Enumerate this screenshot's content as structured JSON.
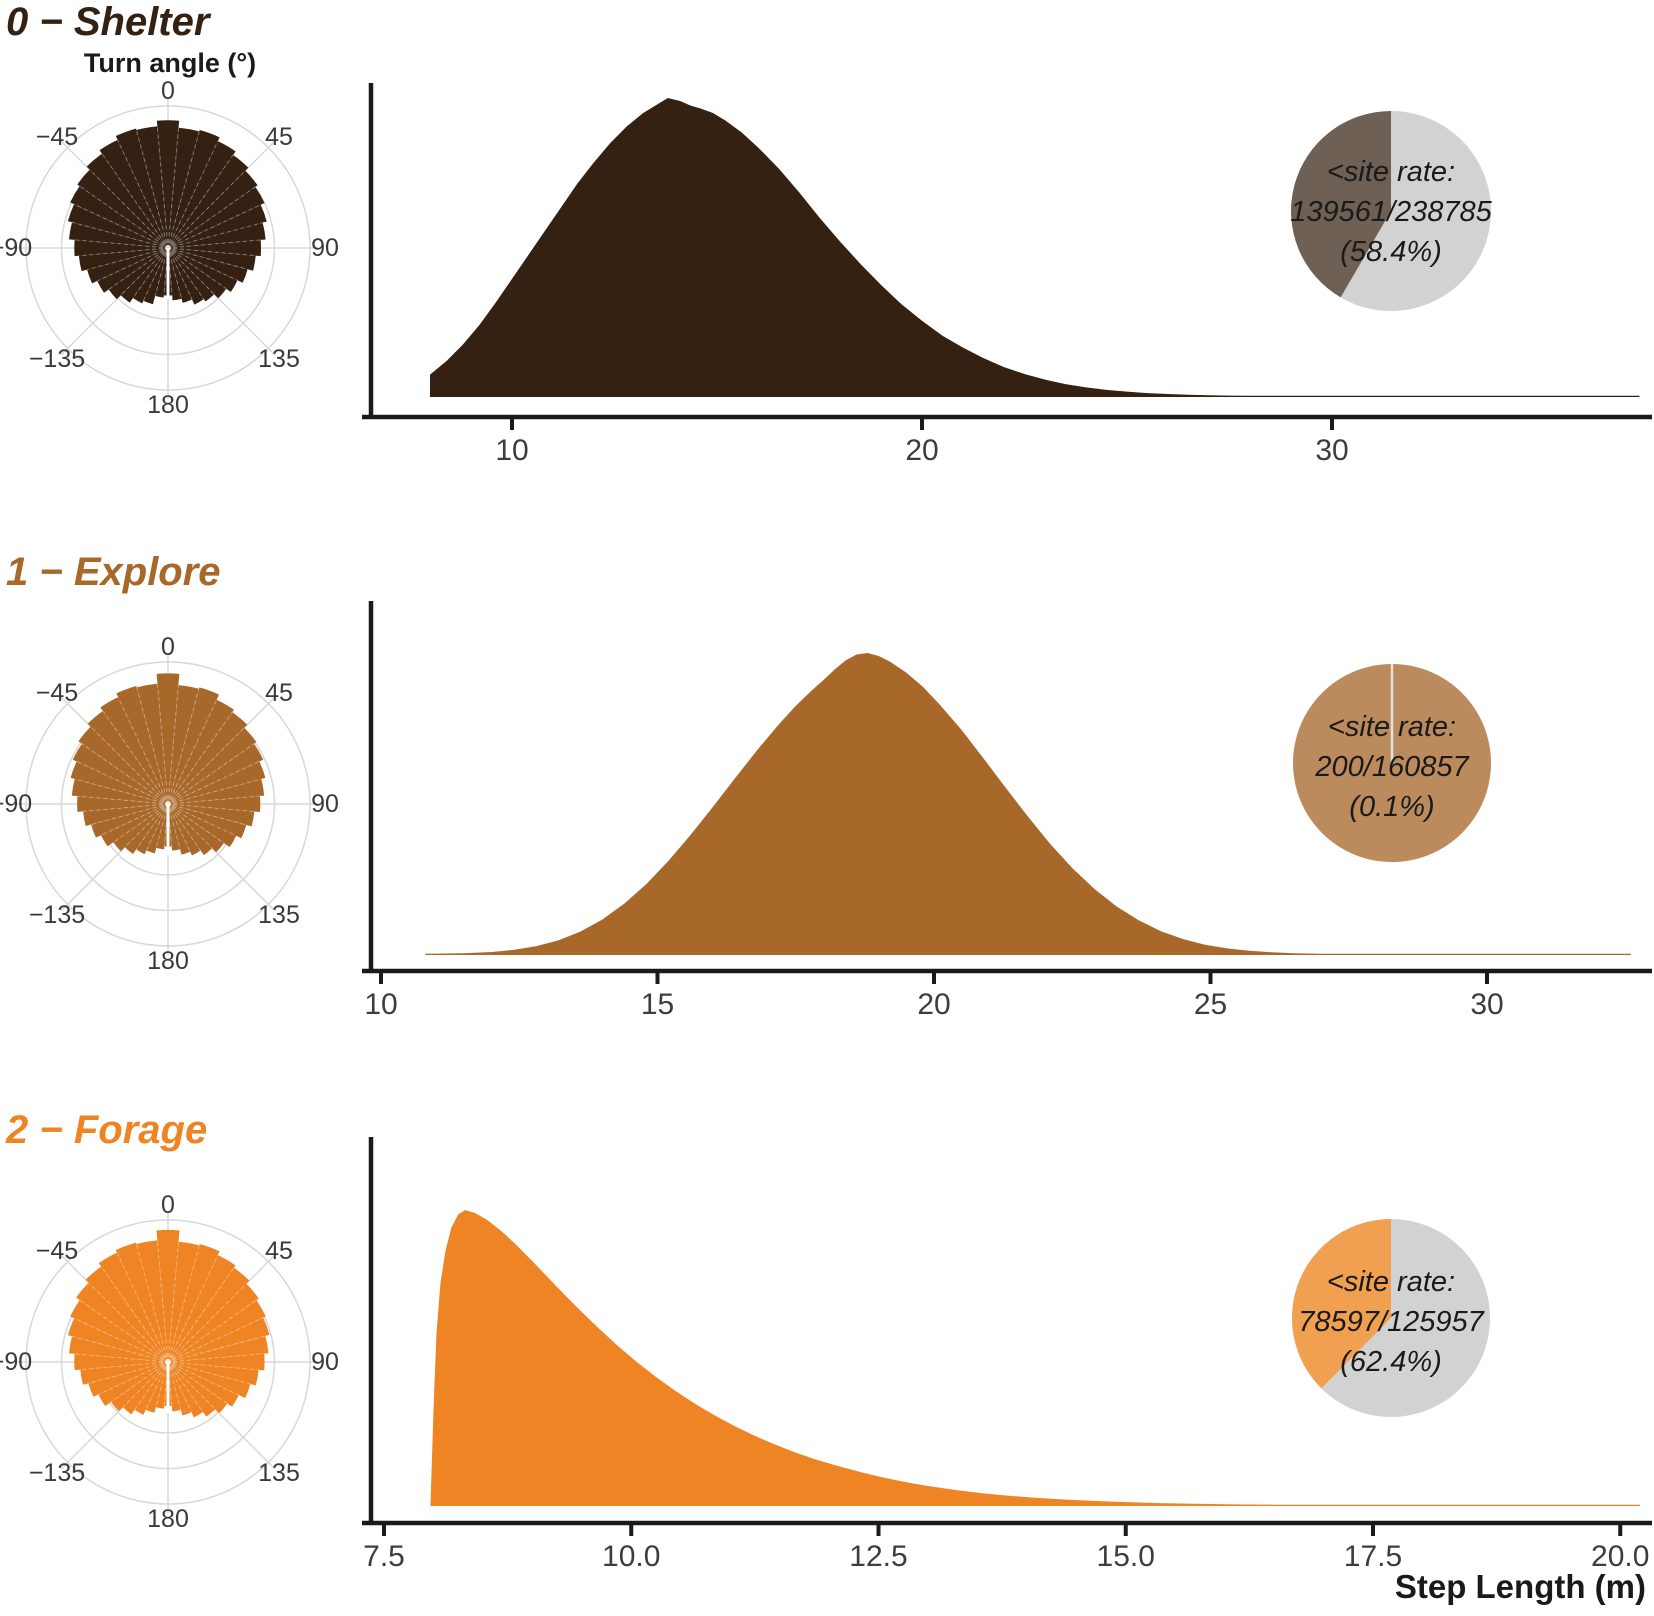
{
  "labels": {
    "turn_angle_axis": "Turn angle (°)",
    "x_axis": "Step Length (m)"
  },
  "chart_data": [
    {
      "type": "composite",
      "state": "shelter",
      "title": "0 − Shelter",
      "color": "#342112",
      "turn_angle_rose": {
        "type": "rose",
        "bin_width_deg": 10,
        "angle_labels": [
          {
            "angle": 0,
            "label": "0"
          },
          {
            "angle": 45,
            "label": "45"
          },
          {
            "angle": 90,
            "label": "90"
          },
          {
            "angle": 135,
            "label": "135"
          },
          {
            "angle": 180,
            "label": "180"
          },
          {
            "angle": -135,
            "label": "−135"
          },
          {
            "angle": -90,
            "label": "−90"
          },
          {
            "angle": -45,
            "label": "−45"
          }
        ],
        "radii": [
          0.9,
          0.85,
          0.86,
          0.83,
          0.8,
          0.77,
          0.75,
          0.72,
          0.69,
          0.655,
          0.62,
          0.58,
          0.54,
          0.5,
          0.46,
          0.44,
          0.4,
          0.37,
          0.335,
          0.35,
          0.41,
          0.43,
          0.47,
          0.51,
          0.55,
          0.59,
          0.63,
          0.66,
          0.7,
          0.73,
          0.76,
          0.78,
          0.81,
          0.84,
          0.87,
          0.86
        ]
      },
      "step_length_density": {
        "type": "area",
        "x_ticks": [
          10,
          20,
          30
        ],
        "x_tick_labels": [
          "10",
          "20",
          "30"
        ],
        "x_range": [
          6.6,
          37.8
        ],
        "points": [
          [
            8.0,
            0.075
          ],
          [
            8.4,
            0.12
          ],
          [
            8.8,
            0.175
          ],
          [
            9.2,
            0.24
          ],
          [
            9.6,
            0.315
          ],
          [
            10.0,
            0.395
          ],
          [
            10.4,
            0.475
          ],
          [
            10.8,
            0.555
          ],
          [
            11.2,
            0.635
          ],
          [
            11.6,
            0.715
          ],
          [
            12.0,
            0.785
          ],
          [
            12.4,
            0.85
          ],
          [
            12.8,
            0.905
          ],
          [
            13.2,
            0.95
          ],
          [
            13.5,
            0.975
          ],
          [
            13.8,
            1.0
          ],
          [
            14.1,
            0.99
          ],
          [
            14.35,
            0.975
          ],
          [
            14.6,
            0.965
          ],
          [
            14.9,
            0.95
          ],
          [
            15.2,
            0.925
          ],
          [
            15.6,
            0.885
          ],
          [
            16.0,
            0.835
          ],
          [
            16.5,
            0.765
          ],
          [
            17.0,
            0.685
          ],
          [
            17.5,
            0.6
          ],
          [
            18.0,
            0.52
          ],
          [
            18.5,
            0.445
          ],
          [
            19.0,
            0.375
          ],
          [
            19.5,
            0.31
          ],
          [
            20.0,
            0.255
          ],
          [
            20.5,
            0.205
          ],
          [
            21.0,
            0.165
          ],
          [
            21.5,
            0.13
          ],
          [
            22.0,
            0.1
          ],
          [
            22.5,
            0.077
          ],
          [
            23.0,
            0.058
          ],
          [
            23.5,
            0.043
          ],
          [
            24.0,
            0.032
          ],
          [
            24.5,
            0.024
          ],
          [
            25.0,
            0.018
          ],
          [
            25.5,
            0.013
          ],
          [
            26.0,
            0.01
          ],
          [
            26.5,
            0.0075
          ],
          [
            27.0,
            0.0058
          ],
          [
            27.5,
            0.0045
          ],
          [
            28.0,
            0.0035
          ],
          [
            29.0,
            0.0025
          ],
          [
            30.0,
            0.0018
          ],
          [
            31.0,
            0.0013
          ],
          [
            32.0,
            0.001
          ],
          [
            33.5,
            0.0008
          ],
          [
            35.0,
            0.0006
          ],
          [
            36.5,
            0.0005
          ],
          [
            37.5,
            0.0004
          ]
        ]
      },
      "site_rate_pie": {
        "type": "pie",
        "lines": [
          "<site rate:",
          "139561/238785",
          "(58.4%)"
        ],
        "numerator": 139561,
        "denominator": 238785,
        "percent": 58.4,
        "slice_color": "#6e6054",
        "other_color": "#d2d2d2"
      }
    },
    {
      "type": "composite",
      "state": "explore",
      "title": "1 − Explore",
      "color": "#a8682a",
      "turn_angle_rose": {
        "type": "rose",
        "bin_width_deg": 10,
        "angle_labels": [
          {
            "angle": 0,
            "label": "0"
          },
          {
            "angle": 45,
            "label": "45"
          },
          {
            "angle": 90,
            "label": "90"
          },
          {
            "angle": 135,
            "label": "135"
          },
          {
            "angle": 180,
            "label": "180"
          },
          {
            "angle": -135,
            "label": "−135"
          },
          {
            "angle": -90,
            "label": "−90"
          },
          {
            "angle": -45,
            "label": "−45"
          }
        ],
        "radii": [
          0.92,
          0.84,
          0.85,
          0.81,
          0.79,
          0.76,
          0.74,
          0.71,
          0.68,
          0.65,
          0.61,
          0.57,
          0.53,
          0.48,
          0.44,
          0.4,
          0.37,
          0.33,
          0.3,
          0.32,
          0.36,
          0.39,
          0.43,
          0.47,
          0.52,
          0.56,
          0.6,
          0.64,
          0.68,
          0.71,
          0.74,
          0.77,
          0.8,
          0.83,
          0.86,
          0.85
        ]
      },
      "step_length_density": {
        "type": "area",
        "x_ticks": [
          10,
          15,
          20,
          25,
          30
        ],
        "x_tick_labels": [
          "10",
          "15",
          "20",
          "25",
          "30"
        ],
        "x_range": [
          9.8,
          33.0
        ],
        "points": [
          [
            10.8,
            0.003
          ],
          [
            11.5,
            0.006
          ],
          [
            12.0,
            0.01
          ],
          [
            12.4,
            0.017
          ],
          [
            12.8,
            0.029
          ],
          [
            13.2,
            0.048
          ],
          [
            13.6,
            0.077
          ],
          [
            14.0,
            0.117
          ],
          [
            14.4,
            0.17
          ],
          [
            14.8,
            0.235
          ],
          [
            15.2,
            0.312
          ],
          [
            15.6,
            0.398
          ],
          [
            16.0,
            0.49
          ],
          [
            16.4,
            0.585
          ],
          [
            16.8,
            0.678
          ],
          [
            17.2,
            0.765
          ],
          [
            17.5,
            0.825
          ],
          [
            17.8,
            0.878
          ],
          [
            18.0,
            0.91
          ],
          [
            18.2,
            0.945
          ],
          [
            18.4,
            0.975
          ],
          [
            18.6,
            0.995
          ],
          [
            18.8,
            1.0
          ],
          [
            19.0,
            0.99
          ],
          [
            19.2,
            0.972
          ],
          [
            19.5,
            0.935
          ],
          [
            19.8,
            0.888
          ],
          [
            20.1,
            0.83
          ],
          [
            20.5,
            0.745
          ],
          [
            20.9,
            0.65
          ],
          [
            21.3,
            0.553
          ],
          [
            21.7,
            0.458
          ],
          [
            22.1,
            0.368
          ],
          [
            22.5,
            0.288
          ],
          [
            22.9,
            0.219
          ],
          [
            23.3,
            0.161
          ],
          [
            23.7,
            0.115
          ],
          [
            24.1,
            0.079
          ],
          [
            24.5,
            0.053
          ],
          [
            24.9,
            0.034
          ],
          [
            25.3,
            0.022
          ],
          [
            25.7,
            0.014
          ],
          [
            26.1,
            0.009
          ],
          [
            26.5,
            0.006
          ],
          [
            27.0,
            0.004
          ],
          [
            27.6,
            0.0027
          ],
          [
            28.2,
            0.0018
          ],
          [
            29.0,
            0.0012
          ],
          [
            30.0,
            0.0008
          ],
          [
            31.2,
            0.0006
          ],
          [
            32.6,
            0.0004
          ]
        ]
      },
      "site_rate_pie": {
        "type": "pie",
        "lines": [
          "<site rate:",
          "200/160857",
          "(0.1%)"
        ],
        "numerator": 200,
        "denominator": 160857,
        "percent": 0.1,
        "slice_color": "#bb8b5e",
        "other_color": "#d2d2d2"
      }
    },
    {
      "type": "composite",
      "state": "forage",
      "title": "2 − Forage",
      "color": "#ef8424",
      "turn_angle_rose": {
        "type": "rose",
        "bin_width_deg": 10,
        "angle_labels": [
          {
            "angle": 0,
            "label": "0"
          },
          {
            "angle": 45,
            "label": "45"
          },
          {
            "angle": 90,
            "label": "90"
          },
          {
            "angle": 135,
            "label": "135"
          },
          {
            "angle": 180,
            "label": "180"
          },
          {
            "angle": -135,
            "label": "−135"
          },
          {
            "angle": -90,
            "label": "−90"
          },
          {
            "angle": -45,
            "label": "−45"
          }
        ],
        "radii": [
          0.93,
          0.85,
          0.86,
          0.83,
          0.81,
          0.78,
          0.76,
          0.74,
          0.71,
          0.68,
          0.64,
          0.6,
          0.55,
          0.51,
          0.47,
          0.43,
          0.39,
          0.35,
          0.31,
          0.33,
          0.37,
          0.41,
          0.45,
          0.49,
          0.54,
          0.58,
          0.62,
          0.66,
          0.7,
          0.73,
          0.76,
          0.79,
          0.82,
          0.85,
          0.87,
          0.86
        ]
      },
      "step_length_density": {
        "type": "area",
        "x_ticks": [
          7.5,
          10.0,
          12.5,
          15.0,
          17.5,
          20.0
        ],
        "x_tick_labels": [
          "7.5",
          "10.0",
          "12.5",
          "15.0",
          "17.5",
          "20.0"
        ],
        "x_range": [
          7.37,
          20.3
        ],
        "points": [
          [
            7.97,
            0.0
          ],
          [
            8.0,
            0.32
          ],
          [
            8.03,
            0.58
          ],
          [
            8.07,
            0.75
          ],
          [
            8.12,
            0.86
          ],
          [
            8.18,
            0.94
          ],
          [
            8.25,
            0.985
          ],
          [
            8.32,
            1.0
          ],
          [
            8.42,
            0.99
          ],
          [
            8.55,
            0.965
          ],
          [
            8.7,
            0.925
          ],
          [
            8.85,
            0.878
          ],
          [
            9.05,
            0.81
          ],
          [
            9.25,
            0.74
          ],
          [
            9.45,
            0.672
          ],
          [
            9.65,
            0.607
          ],
          [
            9.85,
            0.545
          ],
          [
            10.05,
            0.488
          ],
          [
            10.25,
            0.436
          ],
          [
            10.45,
            0.388
          ],
          [
            10.65,
            0.344
          ],
          [
            10.85,
            0.305
          ],
          [
            11.05,
            0.269
          ],
          [
            11.25,
            0.237
          ],
          [
            11.45,
            0.208
          ],
          [
            11.65,
            0.182
          ],
          [
            11.85,
            0.159
          ],
          [
            12.05,
            0.139
          ],
          [
            12.3,
            0.116
          ],
          [
            12.55,
            0.096
          ],
          [
            12.8,
            0.079
          ],
          [
            13.05,
            0.065
          ],
          [
            13.3,
            0.053
          ],
          [
            13.55,
            0.043
          ],
          [
            13.8,
            0.035
          ],
          [
            14.1,
            0.0275
          ],
          [
            14.4,
            0.0215
          ],
          [
            14.7,
            0.0168
          ],
          [
            15.0,
            0.013
          ],
          [
            15.35,
            0.0098
          ],
          [
            15.7,
            0.0074
          ],
          [
            16.1,
            0.0054
          ],
          [
            16.5,
            0.004
          ],
          [
            17.0,
            0.0028
          ],
          [
            17.5,
            0.002
          ],
          [
            18.0,
            0.0015
          ],
          [
            18.7,
            0.0011
          ],
          [
            19.4,
            0.0008
          ],
          [
            20.2,
            0.0006
          ]
        ]
      },
      "site_rate_pie": {
        "type": "pie",
        "lines": [
          "<site rate:",
          "78597/125957",
          "(62.4%)"
        ],
        "numerator": 78597,
        "denominator": 125957,
        "percent": 62.4,
        "slice_color": "#f0a050",
        "other_color": "#d2d2d2"
      }
    }
  ]
}
